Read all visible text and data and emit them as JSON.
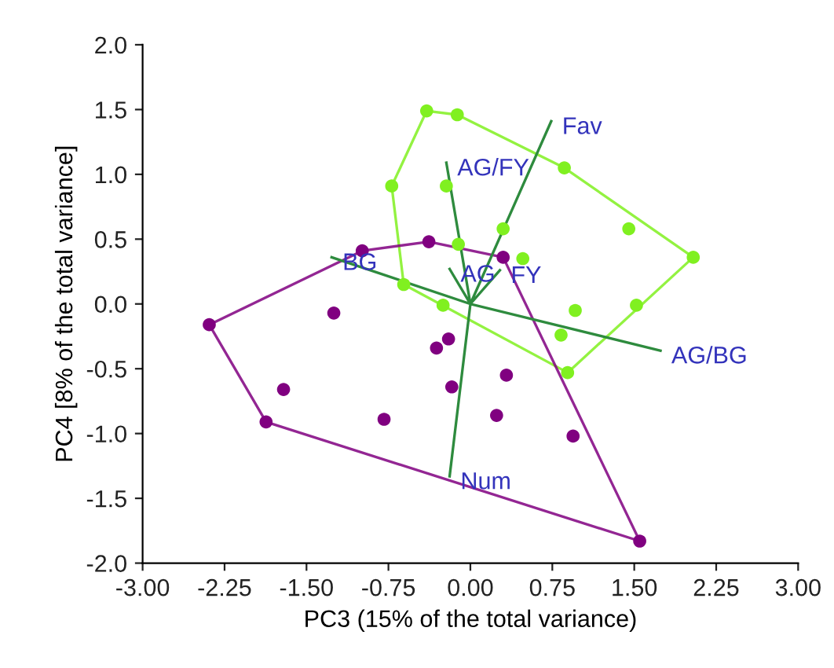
{
  "chart_data": {
    "type": "scatter",
    "xlabel": "PC3 (15% of the total variance)",
    "ylabel": "PC4 [8% of the total variance]",
    "xlim": [
      -3,
      3
    ],
    "ylim": [
      -2,
      2
    ],
    "xticks": [
      {
        "value": -3,
        "label": "-3.00"
      },
      {
        "value": -2.25,
        "label": "-2.25"
      },
      {
        "value": -1.5,
        "label": "-1.50"
      },
      {
        "value": -0.75,
        "label": "-0.75"
      },
      {
        "value": 0,
        "label": "0.00"
      },
      {
        "value": 0.75,
        "label": "0.75"
      },
      {
        "value": 1.5,
        "label": "1.50"
      },
      {
        "value": 2.25,
        "label": "2.25"
      },
      {
        "value": 3,
        "label": "3.00"
      }
    ],
    "yticks": [
      {
        "value": -2,
        "label": "-2.0"
      },
      {
        "value": -1.5,
        "label": "-1.5"
      },
      {
        "value": -1,
        "label": "-1.0"
      },
      {
        "value": -0.5,
        "label": "-0.5"
      },
      {
        "value": 0,
        "label": "0.0"
      },
      {
        "value": 0.5,
        "label": "0.5"
      },
      {
        "value": 1,
        "label": "1.0"
      },
      {
        "value": 1.5,
        "label": "1.5"
      },
      {
        "value": 2,
        "label": "2.0"
      }
    ],
    "grid": false,
    "legend": false,
    "series": [
      {
        "color": "#80f020",
        "x": [
          -0.4,
          -0.12,
          0.86,
          1.45,
          2.04,
          1.52,
          0.96,
          0.83,
          0.89,
          -0.25,
          -0.61,
          -0.72,
          -0.22,
          0.3,
          -0.11,
          0.48
        ],
        "values": [
          1.49,
          1.46,
          1.05,
          0.58,
          0.36,
          -0.01,
          -0.05,
          -0.24,
          -0.53,
          -0.01,
          0.15,
          0.91,
          0.91,
          0.58,
          0.46,
          0.35
        ]
      },
      {
        "color": "#800080",
        "x": [
          -2.39,
          -1.25,
          -0.99,
          -0.38,
          0.3,
          -1.71,
          -1.87,
          -0.79,
          -0.2,
          -0.31,
          -0.17,
          0.33,
          0.24,
          0.94,
          1.55
        ],
        "values": [
          -0.16,
          -0.07,
          0.41,
          0.48,
          0.36,
          -0.66,
          -0.91,
          -0.89,
          -0.27,
          -0.34,
          -0.64,
          -0.55,
          -0.86,
          -1.02,
          -1.83
        ]
      },
      {
        "type": "line",
        "color": "#2e8b3e",
        "x": [
          -0.19,
          0,
          0.74,
          null,
          0,
          -0.22,
          null,
          0,
          -1.27,
          null,
          0,
          -0.19,
          null,
          0,
          0.27,
          null,
          0,
          1.74
        ],
        "values": [
          -1.33,
          0,
          1.41,
          null,
          0,
          1.09,
          null,
          0,
          0.36,
          null,
          0,
          0.27,
          null,
          0,
          0.26,
          null,
          0,
          -0.36
        ]
      }
    ],
    "annotations": [
      {
        "text": "Fav",
        "x": 0.74,
        "y": 1.41
      },
      {
        "text": "AG/FY",
        "x": -0.22,
        "y": 1.09
      },
      {
        "text": "BG",
        "x": -1.27,
        "y": 0.36
      },
      {
        "text": "AG",
        "x": -0.19,
        "y": 0.27
      },
      {
        "text": "FY",
        "x": 0.27,
        "y": 0.26
      },
      {
        "text": "AG/BG",
        "x": 1.74,
        "y": -0.36
      },
      {
        "text": "Num",
        "x": -0.19,
        "y": -1.33
      }
    ]
  }
}
